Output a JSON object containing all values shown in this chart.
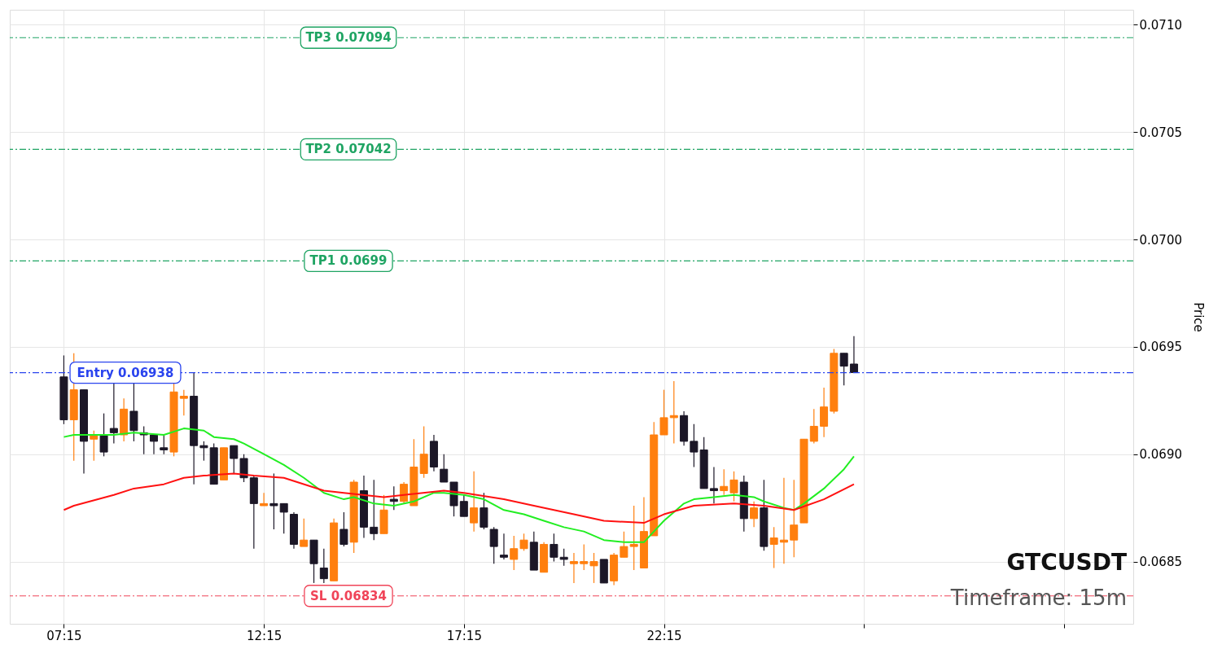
{
  "chart_data": {
    "type": "candlestick",
    "x": [
      7.25,
      7.5,
      7.75,
      8,
      8.25,
      8.5,
      8.75,
      9,
      9.25,
      9.5,
      9.75,
      10,
      10.25,
      10.5,
      10.75,
      11,
      11.25,
      11.5,
      11.75,
      12,
      12.25,
      12.5,
      12.75,
      13,
      13.25,
      13.5,
      13.75,
      14,
      14.25,
      14.5,
      14.75,
      15,
      15.25,
      15.5,
      15.75,
      16,
      16.25,
      16.5,
      16.75,
      17,
      17.25,
      17.5,
      17.75,
      18,
      18.25,
      18.5,
      18.75,
      19,
      19.25,
      19.5,
      19.75,
      20,
      20.25,
      20.5,
      20.75,
      21,
      21.25,
      21.5,
      21.75,
      22,
      22.25,
      22.5,
      22.75,
      23,
      23.25,
      23.5,
      23.75,
      24,
      24.25,
      24.5,
      24.75,
      25,
      25.25,
      25.5,
      25.75,
      26,
      26.25,
      26.5,
      26.75,
      27
    ],
    "ohlc": [
      [
        0.06936,
        0.06946,
        0.06914,
        0.06916
      ],
      [
        0.06916,
        0.06947,
        0.06897,
        0.0693
      ],
      [
        0.0693,
        0.0693,
        0.06891,
        0.06906
      ],
      [
        0.06907,
        0.06911,
        0.06897,
        0.06909
      ],
      [
        0.06909,
        0.06919,
        0.06899,
        0.06901
      ],
      [
        0.06912,
        0.06933,
        0.06905,
        0.0691
      ],
      [
        0.06909,
        0.06926,
        0.06906,
        0.06921
      ],
      [
        0.0692,
        0.06933,
        0.06906,
        0.06911
      ],
      [
        0.0691,
        0.06913,
        0.069,
        0.06909
      ],
      [
        0.06909,
        0.06909,
        0.069,
        0.06906
      ],
      [
        0.06903,
        0.06909,
        0.069,
        0.06902
      ],
      [
        0.06901,
        0.06933,
        0.06899,
        0.06929
      ],
      [
        0.06926,
        0.0693,
        0.06918,
        0.06927
      ],
      [
        0.06927,
        0.06938,
        0.06886,
        0.06904
      ],
      [
        0.06904,
        0.06906,
        0.06897,
        0.06903
      ],
      [
        0.06903,
        0.06905,
        0.06886,
        0.06886
      ],
      [
        0.06888,
        0.06903,
        0.06888,
        0.06903
      ],
      [
        0.06904,
        0.06904,
        0.06891,
        0.06898
      ],
      [
        0.06898,
        0.069,
        0.06887,
        0.06889
      ],
      [
        0.06889,
        0.0689,
        0.06856,
        0.06877
      ],
      [
        0.06876,
        0.06882,
        0.06876,
        0.06877
      ],
      [
        0.06877,
        0.06891,
        0.06865,
        0.06876
      ],
      [
        0.06877,
        0.06877,
        0.06863,
        0.06873
      ],
      [
        0.06872,
        0.06873,
        0.06856,
        0.06858
      ],
      [
        0.06857,
        0.0687,
        0.06857,
        0.0686
      ],
      [
        0.0686,
        0.0686,
        0.0684,
        0.06849
      ],
      [
        0.06847,
        0.06856,
        0.0684,
        0.06842
      ],
      [
        0.06841,
        0.0687,
        0.06841,
        0.06868
      ],
      [
        0.06865,
        0.06873,
        0.06857,
        0.06858
      ],
      [
        0.06859,
        0.06888,
        0.06854,
        0.06887
      ],
      [
        0.06883,
        0.0689,
        0.06861,
        0.06866
      ],
      [
        0.06866,
        0.06888,
        0.0686,
        0.06863
      ],
      [
        0.06863,
        0.06881,
        0.06863,
        0.06874
      ],
      [
        0.06879,
        0.06885,
        0.06874,
        0.06878
      ],
      [
        0.06878,
        0.06887,
        0.06877,
        0.06886
      ],
      [
        0.06876,
        0.06907,
        0.06876,
        0.06894
      ],
      [
        0.06891,
        0.06913,
        0.06889,
        0.069
      ],
      [
        0.06906,
        0.06909,
        0.06892,
        0.06894
      ],
      [
        0.06893,
        0.069,
        0.06887,
        0.06887
      ],
      [
        0.06887,
        0.06887,
        0.06871,
        0.06876
      ],
      [
        0.06878,
        0.06881,
        0.06871,
        0.06871
      ],
      [
        0.06868,
        0.06892,
        0.06864,
        0.06875
      ],
      [
        0.06875,
        0.06882,
        0.06865,
        0.06866
      ],
      [
        0.06865,
        0.06866,
        0.06849,
        0.06857
      ],
      [
        0.06853,
        0.06863,
        0.06851,
        0.06852
      ],
      [
        0.06851,
        0.06862,
        0.06846,
        0.06856
      ],
      [
        0.06856,
        0.06863,
        0.06855,
        0.0686
      ],
      [
        0.06859,
        0.06864,
        0.06846,
        0.06846
      ],
      [
        0.06845,
        0.06859,
        0.06845,
        0.06858
      ],
      [
        0.06858,
        0.06863,
        0.0685,
        0.06852
      ],
      [
        0.06852,
        0.06856,
        0.06848,
        0.06851
      ],
      [
        0.06849,
        0.06854,
        0.0684,
        0.0685
      ],
      [
        0.06849,
        0.06858,
        0.06846,
        0.0685
      ],
      [
        0.06848,
        0.06854,
        0.0684,
        0.0685
      ],
      [
        0.06851,
        0.06851,
        0.0684,
        0.0684
      ],
      [
        0.06841,
        0.06854,
        0.06839,
        0.06853
      ],
      [
        0.06852,
        0.06864,
        0.06852,
        0.06857
      ],
      [
        0.06857,
        0.06876,
        0.06846,
        0.06858
      ],
      [
        0.06847,
        0.0688,
        0.06847,
        0.06864
      ],
      [
        0.06862,
        0.06915,
        0.06862,
        0.06909
      ],
      [
        0.06909,
        0.0693,
        0.06909,
        0.06917
      ],
      [
        0.06917,
        0.06934,
        0.06905,
        0.06918
      ],
      [
        0.06918,
        0.0692,
        0.06904,
        0.06906
      ],
      [
        0.06906,
        0.06914,
        0.06894,
        0.06901
      ],
      [
        0.06902,
        0.06908,
        0.06884,
        0.06884
      ],
      [
        0.06884,
        0.06894,
        0.06877,
        0.06883
      ],
      [
        0.06883,
        0.06893,
        0.06881,
        0.06885
      ],
      [
        0.06882,
        0.06892,
        0.06878,
        0.06888
      ],
      [
        0.06887,
        0.0689,
        0.06864,
        0.0687
      ],
      [
        0.0687,
        0.06878,
        0.06866,
        0.06875
      ],
      [
        0.06875,
        0.06888,
        0.06855,
        0.06857
      ],
      [
        0.06858,
        0.06866,
        0.06847,
        0.06861
      ],
      [
        0.06859,
        0.06889,
        0.06849,
        0.0686
      ],
      [
        0.0686,
        0.06888,
        0.06852,
        0.06867
      ],
      [
        0.06868,
        0.06907,
        0.06868,
        0.06907
      ],
      [
        0.06906,
        0.06921,
        0.06905,
        0.06913
      ],
      [
        0.06913,
        0.06931,
        0.06908,
        0.06922
      ],
      [
        0.0692,
        0.06949,
        0.06919,
        0.06947
      ],
      [
        0.06947,
        0.06947,
        0.06932,
        0.06941
      ],
      [
        0.06942,
        0.06955,
        0.06938,
        0.06938
      ]
    ],
    "colors": [
      "#1c1727",
      "#ff7f0e",
      "#1c1727",
      "#ff7f0e",
      "#1c1727",
      "#1c1727",
      "#ff7f0e",
      "#1c1727",
      "#1c1727",
      "#1c1727",
      "#1c1727",
      "#ff7f0e",
      "#ff7f0e",
      "#1c1727",
      "#1c1727",
      "#1c1727",
      "#ff7f0e",
      "#1c1727",
      "#1c1727",
      "#1c1727",
      "#ff7f0e",
      "#1c1727",
      "#1c1727",
      "#1c1727",
      "#ff7f0e",
      "#1c1727",
      "#1c1727",
      "#ff7f0e",
      "#1c1727",
      "#ff7f0e",
      "#1c1727",
      "#1c1727",
      "#ff7f0e",
      "#1c1727",
      "#ff7f0e",
      "#ff7f0e",
      "#ff7f0e",
      "#1c1727",
      "#1c1727",
      "#1c1727",
      "#1c1727",
      "#ff7f0e",
      "#1c1727",
      "#1c1727",
      "#1c1727",
      "#ff7f0e",
      "#ff7f0e",
      "#1c1727",
      "#ff7f0e",
      "#1c1727",
      "#1c1727",
      "#ff7f0e",
      "#ff7f0e",
      "#ff7f0e",
      "#1c1727",
      "#ff7f0e",
      "#ff7f0e",
      "#ff7f0e",
      "#ff7f0e",
      "#ff7f0e",
      "#ff7f0e",
      "#ff7f0e",
      "#1c1727",
      "#1c1727",
      "#1c1727",
      "#1c1727",
      "#ff7f0e",
      "#ff7f0e",
      "#1c1727",
      "#ff7f0e",
      "#1c1727",
      "#ff7f0e",
      "#ff7f0e",
      "#ff7f0e",
      "#ff7f0e",
      "#ff7f0e",
      "#ff7f0e",
      "#ff7f0e",
      "#1c1727",
      "#1c1727"
    ],
    "series": [
      {
        "type": "line",
        "color": "#22ee22",
        "x": [
          7.25,
          7.5,
          8,
          8.5,
          9,
          9.75,
          10.25,
          10.75,
          11,
          11.5,
          11.75,
          12.25,
          12.75,
          13.25,
          13.75,
          14.25,
          14.5,
          15,
          15.5,
          16,
          16.5,
          16.75,
          17.25,
          17.75,
          18.25,
          18.75,
          19.25,
          19.75,
          20.25,
          20.75,
          21.25,
          21.75,
          22,
          22.25,
          22.75,
          23,
          23.5,
          24,
          24.5,
          24.75,
          25.25,
          25.5,
          25.75,
          26.25,
          26.75,
          27
        ],
        "values": [
          0.06908,
          0.06909,
          0.06909,
          0.06909,
          0.0691,
          0.06909,
          0.06912,
          0.06911,
          0.06908,
          0.06907,
          0.06905,
          0.069,
          0.06895,
          0.06889,
          0.06882,
          0.06879,
          0.0688,
          0.06877,
          0.06876,
          0.06878,
          0.06882,
          0.06882,
          0.06881,
          0.06879,
          0.06874,
          0.06872,
          0.06869,
          0.06866,
          0.06864,
          0.0686,
          0.06859,
          0.06859,
          0.06864,
          0.06869,
          0.06877,
          0.06879,
          0.0688,
          0.06881,
          0.0688,
          0.06878,
          0.06875,
          0.06874,
          0.06877,
          0.06884,
          0.06893,
          0.06899
        ]
      },
      {
        "type": "line",
        "color": "#ff1111",
        "x": [
          7.25,
          7.5,
          8.5,
          9,
          9.75,
          10.25,
          10.75,
          11.5,
          12,
          12.75,
          13.75,
          14.25,
          15.25,
          15.75,
          16.75,
          17.25,
          18.25,
          19,
          20,
          20.75,
          21.75,
          22.25,
          23,
          24,
          24.75,
          25.5,
          26.25,
          27
        ],
        "values": [
          0.06874,
          0.06876,
          0.06881,
          0.06884,
          0.06886,
          0.06889,
          0.0689,
          0.06891,
          0.0689,
          0.06889,
          0.06883,
          0.06882,
          0.0688,
          0.06881,
          0.06883,
          0.06882,
          0.06879,
          0.06876,
          0.06872,
          0.06869,
          0.06868,
          0.06872,
          0.06876,
          0.06877,
          0.06876,
          0.06874,
          0.06879,
          0.06886
        ]
      }
    ],
    "xlim": [
      6.0,
      33.88
    ],
    "ylim": [
      0.06821,
      0.07107
    ],
    "xticks": [
      {
        "value": 7.25,
        "label": "07:15"
      },
      {
        "value": 12.25,
        "label": "12:15"
      },
      {
        "value": 17.25,
        "label": "17:15"
      },
      {
        "value": 22.25,
        "label": "22:15"
      },
      {
        "value": 27.25,
        "label": null
      },
      {
        "value": 32.25,
        "label": null
      }
    ],
    "yticks": [
      0.0685,
      {
        "value": 0.069,
        "label": "0.0690"
      },
      0.0695,
      {
        "value": 0.07,
        "label": "0.0700"
      },
      0.0705,
      {
        "value": 0.071,
        "label": "0.0710"
      }
    ],
    "ylabel": "Price",
    "ref_lines": [
      {
        "axis": "y",
        "value": 0.07094,
        "label": "TP3 0.07094",
        "color": "#1fa463",
        "line_style": "dashed"
      },
      {
        "axis": "y",
        "value": 0.07042,
        "label": "TP2 0.07042",
        "color": "#1fa463",
        "line_style": "dashed"
      },
      {
        "axis": "y",
        "value": 0.0699,
        "label": "TP1 0.0699",
        "color": "#1fa463",
        "line_style": "dashed"
      },
      {
        "axis": "y",
        "value": 0.06938,
        "label": "Entry 0.06938",
        "color": "#2a44ee",
        "line_style": "dashed"
      },
      {
        "axis": "y",
        "value": 0.06834,
        "label": "SL 0.06834",
        "color": "#f04458",
        "line_style": "dashed"
      }
    ],
    "annotations": [
      "GTCUSDT",
      "Timeframe: 15m"
    ],
    "grid": true
  }
}
